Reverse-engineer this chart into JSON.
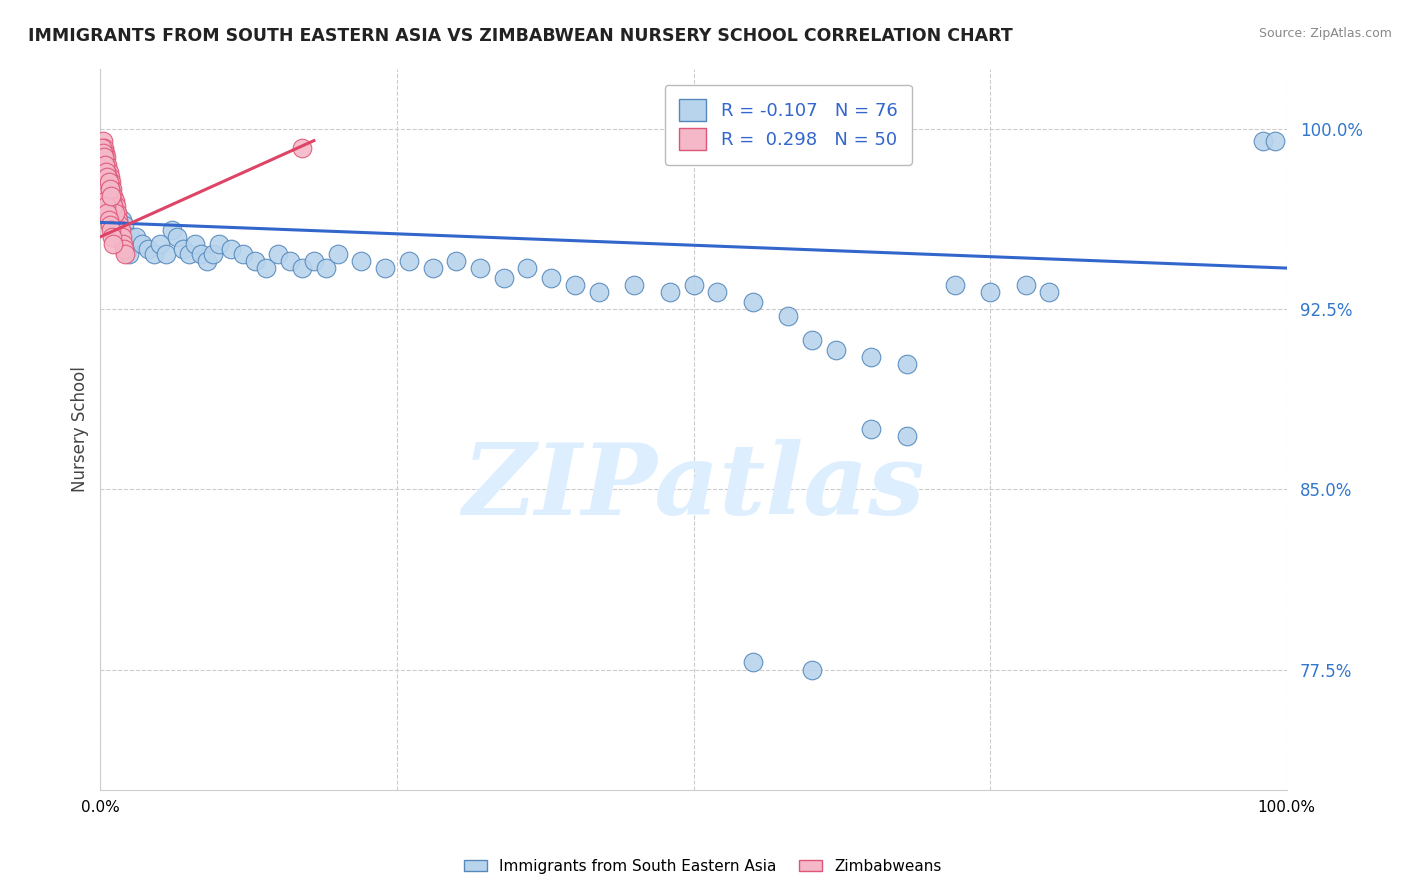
{
  "title": "IMMIGRANTS FROM SOUTH EASTERN ASIA VS ZIMBABWEAN NURSERY SCHOOL CORRELATION CHART",
  "source": "Source: ZipAtlas.com",
  "ylabel": "Nursery School",
  "blue_label": "Immigrants from South Eastern Asia",
  "pink_label": "Zimbabweans",
  "blue_R": -0.107,
  "blue_N": 76,
  "pink_R": 0.298,
  "pink_N": 50,
  "blue_color": "#b8d4ed",
  "pink_color": "#f5b8c8",
  "blue_edge": "#5588bb",
  "pink_edge": "#dd5577",
  "blue_line_color": "#3366cc",
  "pink_line_color": "#dd4466",
  "watermark_color": "#ddeeff",
  "xlim": [
    0,
    1.0
  ],
  "ylim": [
    0.725,
    1.025
  ],
  "ytick_vals": [
    0.775,
    0.85,
    0.925,
    1.0
  ],
  "ytick_labels": [
    "77.5%",
    "85.0%",
    "92.5%",
    "100.0%"
  ],
  "xtick_vals": [
    0.0,
    0.25,
    0.5,
    0.75,
    1.0
  ],
  "xtick_labels": [
    "0.0%",
    "",
    "",
    "",
    "100.0%"
  ],
  "blue_trendline_x": [
    0.0,
    1.0
  ],
  "blue_trendline_y": [
    0.961,
    0.942
  ],
  "pink_trendline_x": [
    0.0,
    0.18
  ],
  "pink_trendline_y": [
    0.955,
    0.995
  ],
  "blue_x": [
    0.005,
    0.007,
    0.008,
    0.009,
    0.01,
    0.011,
    0.012,
    0.013,
    0.014,
    0.015,
    0.016,
    0.017,
    0.018,
    0.019,
    0.02,
    0.021,
    0.022,
    0.023,
    0.024,
    0.025,
    0.03,
    0.035,
    0.04,
    0.045,
    0.05,
    0.055,
    0.06,
    0.065,
    0.07,
    0.075,
    0.08,
    0.085,
    0.09,
    0.095,
    0.1,
    0.11,
    0.12,
    0.13,
    0.14,
    0.15,
    0.16,
    0.17,
    0.18,
    0.19,
    0.2,
    0.22,
    0.24,
    0.26,
    0.28,
    0.3,
    0.32,
    0.34,
    0.36,
    0.38,
    0.4,
    0.42,
    0.45,
    0.48,
    0.5,
    0.52,
    0.55,
    0.58,
    0.6,
    0.62,
    0.65,
    0.68,
    0.72,
    0.75,
    0.78,
    0.8,
    0.65,
    0.68,
    0.98,
    0.99,
    0.55,
    0.6
  ],
  "blue_y": [
    0.975,
    0.972,
    0.969,
    0.968,
    0.97,
    0.966,
    0.964,
    0.962,
    0.965,
    0.963,
    0.96,
    0.958,
    0.962,
    0.955,
    0.96,
    0.955,
    0.952,
    0.95,
    0.948,
    0.955,
    0.955,
    0.952,
    0.95,
    0.948,
    0.952,
    0.948,
    0.958,
    0.955,
    0.95,
    0.948,
    0.952,
    0.948,
    0.945,
    0.948,
    0.952,
    0.95,
    0.948,
    0.945,
    0.942,
    0.948,
    0.945,
    0.942,
    0.945,
    0.942,
    0.948,
    0.945,
    0.942,
    0.945,
    0.942,
    0.945,
    0.942,
    0.938,
    0.942,
    0.938,
    0.935,
    0.932,
    0.935,
    0.932,
    0.935,
    0.932,
    0.928,
    0.922,
    0.912,
    0.908,
    0.905,
    0.902,
    0.935,
    0.932,
    0.935,
    0.932,
    0.875,
    0.872,
    0.995,
    0.995,
    0.778,
    0.775
  ],
  "pink_x": [
    0.002,
    0.003,
    0.004,
    0.005,
    0.006,
    0.007,
    0.008,
    0.009,
    0.01,
    0.011,
    0.012,
    0.013,
    0.014,
    0.015,
    0.016,
    0.017,
    0.018,
    0.019,
    0.02,
    0.021,
    0.003,
    0.004,
    0.005,
    0.006,
    0.007,
    0.008,
    0.009,
    0.01,
    0.011,
    0.012,
    0.002,
    0.003,
    0.004,
    0.005,
    0.006,
    0.007,
    0.008,
    0.009,
    0.01,
    0.011,
    0.001,
    0.002,
    0.003,
    0.004,
    0.005,
    0.006,
    0.007,
    0.008,
    0.009,
    0.17
  ],
  "pink_y": [
    0.995,
    0.992,
    0.99,
    0.988,
    0.985,
    0.982,
    0.98,
    0.978,
    0.975,
    0.972,
    0.97,
    0.968,
    0.965,
    0.962,
    0.96,
    0.958,
    0.955,
    0.952,
    0.95,
    0.948,
    0.988,
    0.985,
    0.982,
    0.98,
    0.978,
    0.975,
    0.972,
    0.97,
    0.968,
    0.965,
    0.975,
    0.972,
    0.97,
    0.968,
    0.965,
    0.962,
    0.96,
    0.958,
    0.955,
    0.952,
    0.992,
    0.99,
    0.988,
    0.985,
    0.982,
    0.98,
    0.978,
    0.975,
    0.972,
    0.992
  ]
}
